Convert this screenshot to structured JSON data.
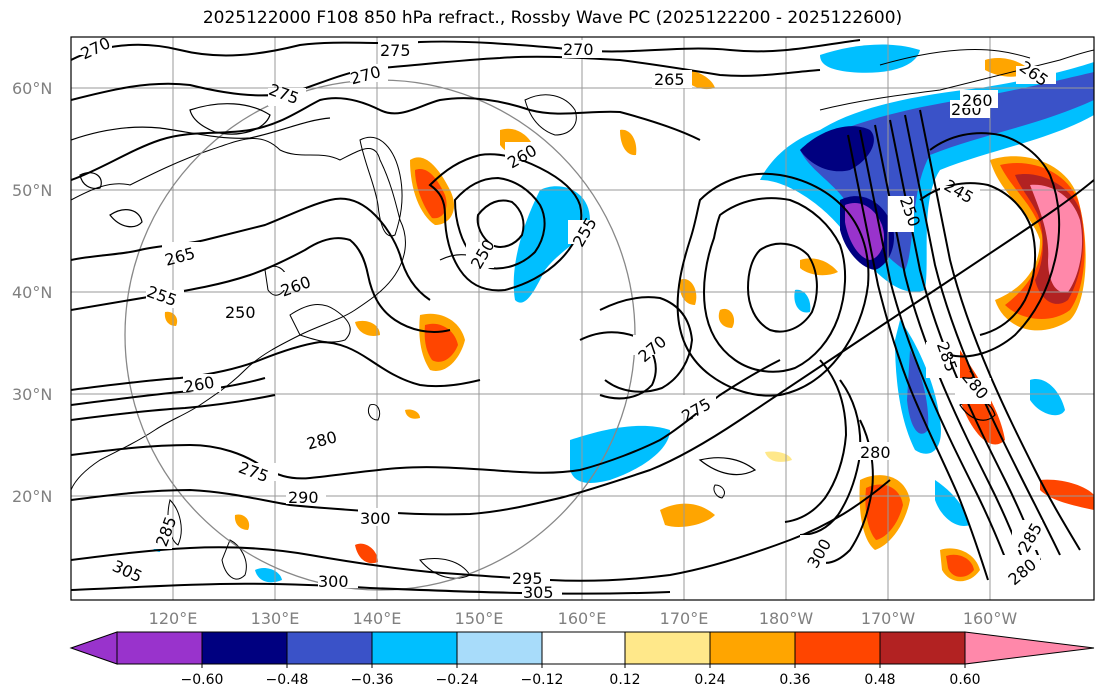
{
  "title": "2025122000 F108 850 hPa refract., Rossby Wave PC (2025122200 - 2025122600)",
  "latitude_labels": [
    "60°N",
    "50°N",
    "40°N",
    "30°N",
    "20°N"
  ],
  "longitude_labels": [
    "120°E",
    "130°E",
    "140°E",
    "150°E",
    "160°E",
    "170°E",
    "180°W",
    "170°W",
    "160°W"
  ],
  "contour_labels": [
    "270",
    "275",
    "270",
    "265",
    "265",
    "260",
    "275",
    "270",
    "260",
    "255",
    "250",
    "265",
    "260",
    "255",
    "250",
    "260",
    "250",
    "245",
    "270",
    "275",
    "280",
    "275",
    "290",
    "300",
    "300",
    "305",
    "295",
    "305",
    "280",
    "285",
    "280",
    "300",
    "285",
    "280",
    "285",
    "260"
  ],
  "colorbar": {
    "ticks": [
      "−0.60",
      "−0.48",
      "−0.36",
      "−0.24",
      "−0.12",
      "0.12",
      "0.24",
      "0.36",
      "0.48",
      "0.60"
    ],
    "colors": [
      "#9933cc",
      "#000080",
      "#3a52c8",
      "#00bfff",
      "#a8dcfa",
      "#ffffff",
      "#ffe88a",
      "#ffa500",
      "#ff4500",
      "#b22222",
      "#ff88aa"
    ]
  },
  "colors": {
    "grid": "#999999",
    "axis_label": "#808080",
    "contour": "#000000",
    "circle": "#888888"
  }
}
